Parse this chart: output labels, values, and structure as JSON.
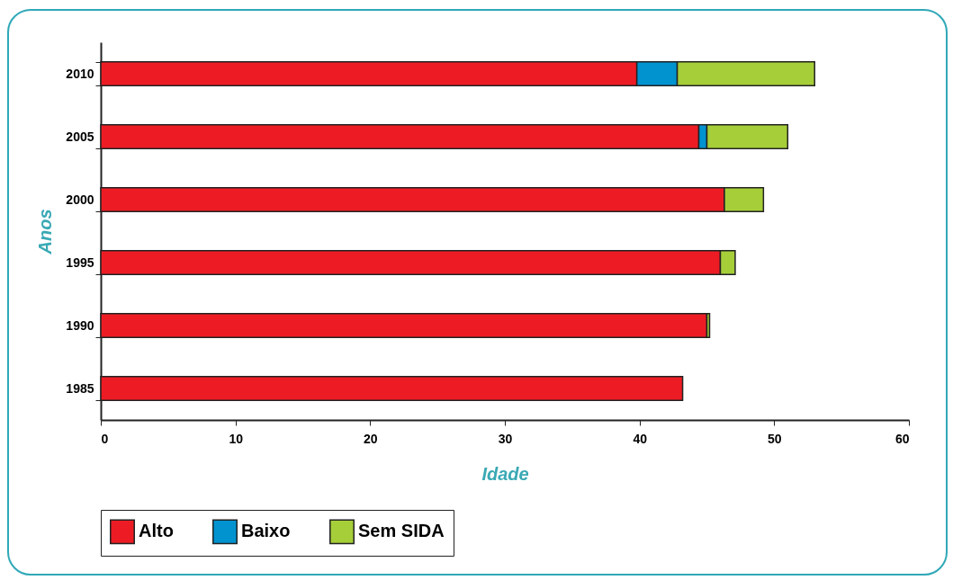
{
  "chart_data": {
    "type": "bar",
    "orientation": "horizontal",
    "stacked": true,
    "xlabel": "Idade",
    "ylabel": "Anos",
    "categories": [
      "2010",
      "2005",
      "2000",
      "1995",
      "1990",
      "1985"
    ],
    "series": [
      {
        "name": "Alto",
        "color": "#ed1c24",
        "values": [
          39.8,
          44.4,
          46.3,
          46.0,
          45.0,
          43.2
        ]
      },
      {
        "name": "Baixo",
        "color": "#0093d0",
        "values": [
          3.0,
          0.6,
          null,
          null,
          null,
          null
        ]
      },
      {
        "name": "Sem SIDA",
        "color": "#a6ce39",
        "values": [
          10.2,
          6.0,
          2.9,
          1.1,
          0.2,
          null
        ]
      }
    ],
    "xlim": [
      0,
      60
    ],
    "xticks": [
      0,
      10,
      20,
      30,
      40,
      50,
      60
    ],
    "grid": false,
    "legend": "bottom"
  }
}
